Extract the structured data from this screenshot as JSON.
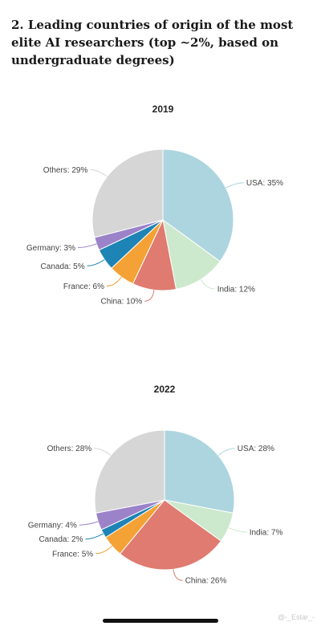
{
  "page": {
    "title": "2. Leading countries of origin of the most elite AI researchers (top ~2%, based on undergraduate degrees)",
    "watermark": "@-_Estar_-"
  },
  "chart_data": [
    {
      "type": "pie",
      "title": "2019",
      "slices": [
        {
          "label": "USA",
          "value": 35,
          "display": "USA: 35%",
          "color": "#add5df"
        },
        {
          "label": "India",
          "value": 12,
          "display": "India: 12%",
          "color": "#cde9cd"
        },
        {
          "label": "China",
          "value": 10,
          "display": "China: 10%",
          "color": "#df7b70"
        },
        {
          "label": "France",
          "value": 6,
          "display": "France: 6%",
          "color": "#f4a235"
        },
        {
          "label": "Canada",
          "value": 5,
          "display": "Canada: 5%",
          "color": "#1e84b5"
        },
        {
          "label": "Germany",
          "value": 3,
          "display": "Germany: 3%",
          "color": "#9b82c9"
        },
        {
          "label": "Others",
          "value": 29,
          "display": "Others: 29%",
          "color": "#d6d6d6"
        }
      ]
    },
    {
      "type": "pie",
      "title": "2022",
      "slices": [
        {
          "label": "USA",
          "value": 28,
          "display": "USA: 28%",
          "color": "#add5df"
        },
        {
          "label": "India",
          "value": 7,
          "display": "India: 7%",
          "color": "#cde9cd"
        },
        {
          "label": "China",
          "value": 26,
          "display": "China: 26%",
          "color": "#df7b70"
        },
        {
          "label": "France",
          "value": 5,
          "display": "France: 5%",
          "color": "#f4a235"
        },
        {
          "label": "Canada",
          "value": 2,
          "display": "Canada: 2%",
          "color": "#1e84b5"
        },
        {
          "label": "Germany",
          "value": 4,
          "display": "Germany: 4%",
          "color": "#9b82c9"
        },
        {
          "label": "Others",
          "value": 28,
          "display": "Others: 28%",
          "color": "#d6d6d6"
        }
      ]
    }
  ]
}
